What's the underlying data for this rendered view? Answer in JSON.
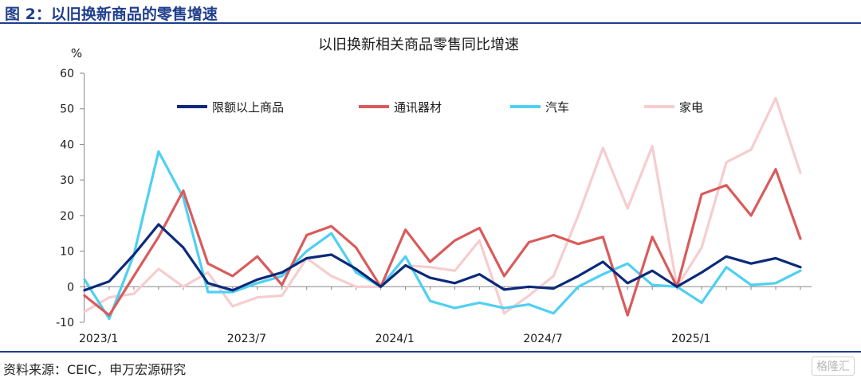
{
  "figure_title": "图 2：以旧换新商品的零售增速",
  "source_text": "资料来源：CEIC，申万宏源研究",
  "watermark_text": "格隆汇",
  "chart_data": {
    "type": "line",
    "title": "以旧换新相关商品零售同比增速",
    "ylabel": "%",
    "xlabel": "",
    "ylim": [
      -10,
      60
    ],
    "yticks": [
      -10,
      0,
      10,
      20,
      30,
      40,
      50,
      60
    ],
    "grid": false,
    "legend_position": "top",
    "x": [
      "2023/1",
      "2023/2",
      "2023/3",
      "2023/4",
      "2023/5",
      "2023/6",
      "2023/7",
      "2023/8",
      "2023/9",
      "2023/10",
      "2023/11",
      "2023/12",
      "2024/1",
      "2024/2",
      "2024/3",
      "2024/4",
      "2024/5",
      "2024/6",
      "2024/7",
      "2024/8",
      "2024/9",
      "2024/10",
      "2024/11",
      "2024/12",
      "2025/1",
      "2025/2",
      "2025/3",
      "2025/4",
      "2025/5",
      "2025/6"
    ],
    "xtick_labels": [
      "2023/1",
      "2023/7",
      "2024/1",
      "2024/7",
      "2025/1"
    ],
    "series": [
      {
        "name": "限额以上商品",
        "color": "#0b2a7a",
        "values": [
          -1,
          1.5,
          9,
          17.5,
          11,
          1,
          -1,
          2,
          4,
          8,
          9,
          5,
          0,
          6,
          2.5,
          1,
          3.5,
          -0.8,
          0,
          -0.5,
          3,
          7,
          1,
          4.5,
          0,
          4,
          8.5,
          6.5,
          8,
          5.5
        ]
      },
      {
        "name": "通讯器材",
        "color": "#d95b5b",
        "values": [
          -2.5,
          -8,
          3,
          14,
          27,
          6.5,
          3,
          8.5,
          0.5,
          14.5,
          17,
          11,
          0,
          16,
          7,
          13,
          16.5,
          3,
          12.5,
          14.5,
          12,
          14,
          -8,
          14,
          0,
          26,
          28.5,
          20,
          33,
          13.5
        ]
      },
      {
        "name": "汽车",
        "color": "#4fd0f2",
        "values": [
          2,
          -9,
          9,
          38,
          25,
          -1.5,
          -1.5,
          1,
          3,
          10,
          15,
          4,
          0,
          8.5,
          -4,
          -6,
          -4.5,
          -6,
          -5,
          -7.5,
          0,
          3.5,
          6.5,
          0.5,
          0,
          -4.5,
          5.5,
          0.5,
          1,
          4.5
        ]
      },
      {
        "name": "家电",
        "color": "#f6cdcf",
        "values": [
          -7,
          -3,
          -2,
          5,
          0,
          4,
          -5.5,
          -3,
          -2.5,
          8,
          3,
          0,
          0,
          6,
          5.5,
          4.5,
          13,
          -7.5,
          -2.5,
          3,
          20,
          39,
          22,
          39.5,
          0,
          11,
          35,
          38.5,
          53,
          32
        ]
      }
    ]
  }
}
